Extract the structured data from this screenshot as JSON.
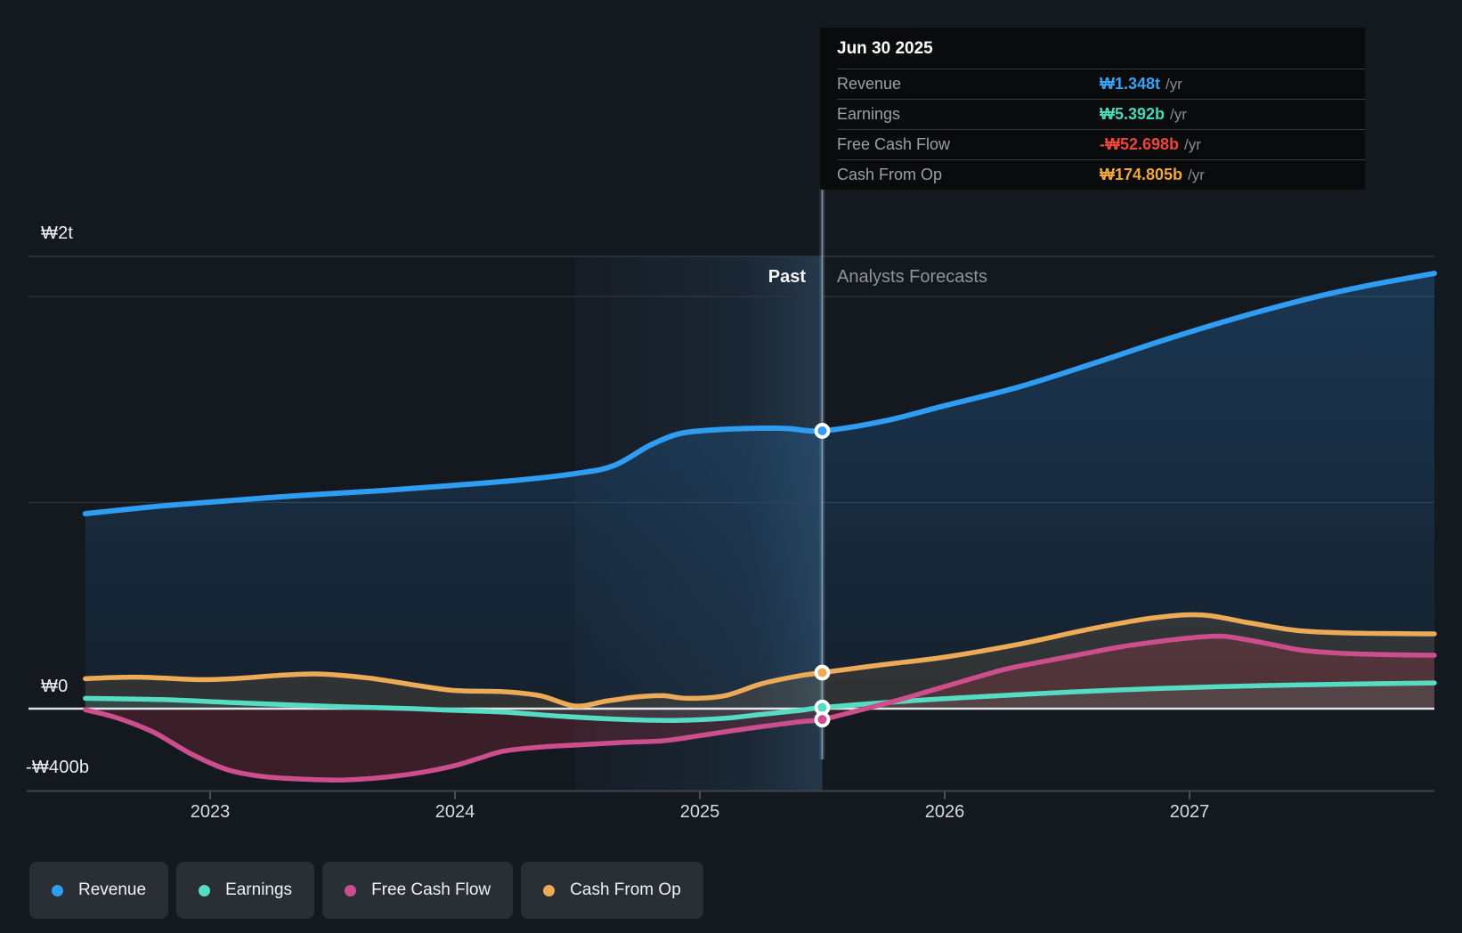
{
  "page": {
    "background": "#14181F"
  },
  "tooltip": {
    "date": "Jun 30 2025",
    "rows": [
      {
        "label": "Revenue",
        "value": "₩1.348t",
        "suffix": "/yr",
        "color": "#35A2F4"
      },
      {
        "label": "Earnings",
        "value": "₩5.392b",
        "suffix": "/yr",
        "color": "#46D8B8"
      },
      {
        "label": "Free Cash Flow",
        "value": "-₩52.698b",
        "suffix": "/yr",
        "color": "#EF453B"
      },
      {
        "label": "Cash From Op",
        "value": "₩174.805b",
        "suffix": "/yr",
        "color": "#F0A63C"
      }
    ]
  },
  "annotations": {
    "past": "Past",
    "forecast": "Analysts Forecasts"
  },
  "legend": [
    {
      "label": "Revenue",
      "color": "#2F9DF2"
    },
    {
      "label": "Earnings",
      "color": "#55DCC2"
    },
    {
      "label": "Free Cash Flow",
      "color": "#CC4E8C"
    },
    {
      "label": "Cash From Op",
      "color": "#EDAB58"
    }
  ],
  "chart_data": {
    "type": "area",
    "title": "Revenue, Earnings and Cash Flow — past and analyst forecasts",
    "x_unit": "calendar year",
    "x_range": [
      2022.49,
      2028.0
    ],
    "x_ticks": [
      2023,
      2024,
      2025,
      2026,
      2027
    ],
    "y_unit": "₩ billions",
    "ylim": [
      -402,
      2272
    ],
    "y_ticks": [
      {
        "label": "₩2t",
        "value": 2000
      },
      {
        "label": "₩0",
        "value": 0
      },
      {
        "label": "-₩400b",
        "value": -400
      }
    ],
    "grid_values": [
      2000,
      1000
    ],
    "divider_x": 2025.5,
    "highlight_band": {
      "from": 2024.49,
      "to": 2025.5
    },
    "marker_date": "Jun 30 2025",
    "series": [
      {
        "name": "Revenue",
        "color": "#2F9DF2",
        "fill": "rgba(44,142,228,0.16)",
        "marker_value": 1348,
        "points": [
          [
            2022.49,
            946
          ],
          [
            2022.75,
            978
          ],
          [
            2023.0,
            1002
          ],
          [
            2023.35,
            1033
          ],
          [
            2023.7,
            1058
          ],
          [
            2024.0,
            1084
          ],
          [
            2024.25,
            1108
          ],
          [
            2024.5,
            1142
          ],
          [
            2024.65,
            1180
          ],
          [
            2024.8,
            1280
          ],
          [
            2024.92,
            1335
          ],
          [
            2025.05,
            1352
          ],
          [
            2025.2,
            1360
          ],
          [
            2025.35,
            1360
          ],
          [
            2025.5,
            1348
          ],
          [
            2025.75,
            1395
          ],
          [
            2026.0,
            1470
          ],
          [
            2026.3,
            1560
          ],
          [
            2026.6,
            1672
          ],
          [
            2026.9,
            1790
          ],
          [
            2027.2,
            1898
          ],
          [
            2027.5,
            1993
          ],
          [
            2027.75,
            2058
          ],
          [
            2028.0,
            2112
          ]
        ]
      },
      {
        "name": "Cash From Op",
        "color": "#EDAB58",
        "fill": "rgba(235,168,85,0.13)",
        "marker_value": 174.805,
        "points": [
          [
            2022.49,
            145
          ],
          [
            2022.7,
            153
          ],
          [
            2022.95,
            141
          ],
          [
            2023.1,
            146
          ],
          [
            2023.3,
            163
          ],
          [
            2023.45,
            168
          ],
          [
            2023.65,
            148
          ],
          [
            2023.85,
            112
          ],
          [
            2024.0,
            88
          ],
          [
            2024.2,
            82
          ],
          [
            2024.35,
            62
          ],
          [
            2024.49,
            13
          ],
          [
            2024.62,
            37
          ],
          [
            2024.75,
            58
          ],
          [
            2024.85,
            63
          ],
          [
            2024.95,
            50
          ],
          [
            2025.1,
            62
          ],
          [
            2025.25,
            120
          ],
          [
            2025.4,
            158
          ],
          [
            2025.5,
            174.805
          ],
          [
            2025.75,
            214
          ],
          [
            2026.0,
            250
          ],
          [
            2026.3,
            312
          ],
          [
            2026.6,
            388
          ],
          [
            2026.85,
            440
          ],
          [
            2027.05,
            455
          ],
          [
            2027.25,
            415
          ],
          [
            2027.45,
            378
          ],
          [
            2027.7,
            366
          ],
          [
            2028.0,
            363
          ]
        ]
      },
      {
        "name": "Earnings",
        "color": "#55DCC2",
        "fill": "rgba(85,215,190,0.13)",
        "marker_value": 5.392,
        "points": [
          [
            2022.49,
            50
          ],
          [
            2022.8,
            44
          ],
          [
            2023.1,
            29
          ],
          [
            2023.5,
            11
          ],
          [
            2023.8,
            1
          ],
          [
            2024.0,
            -8
          ],
          [
            2024.2,
            -17
          ],
          [
            2024.45,
            -38
          ],
          [
            2024.7,
            -53
          ],
          [
            2024.9,
            -57
          ],
          [
            2025.1,
            -47
          ],
          [
            2025.25,
            -28
          ],
          [
            2025.4,
            -10
          ],
          [
            2025.5,
            5.392
          ],
          [
            2025.8,
            33
          ],
          [
            2026.1,
            55
          ],
          [
            2026.5,
            80
          ],
          [
            2026.9,
            99
          ],
          [
            2027.3,
            112
          ],
          [
            2027.7,
            120
          ],
          [
            2028.0,
            125
          ]
        ]
      },
      {
        "name": "Free Cash Flow",
        "color": "#CC4E8C",
        "fill": "rgba(210,62,80,0.20)",
        "marker_value": -52.698,
        "points": [
          [
            2022.49,
            -5
          ],
          [
            2022.62,
            -45
          ],
          [
            2022.77,
            -115
          ],
          [
            2022.92,
            -218
          ],
          [
            2023.07,
            -296
          ],
          [
            2023.22,
            -330
          ],
          [
            2023.4,
            -343
          ],
          [
            2023.55,
            -346
          ],
          [
            2023.72,
            -332
          ],
          [
            2023.87,
            -308
          ],
          [
            2024.0,
            -276
          ],
          [
            2024.1,
            -240
          ],
          [
            2024.2,
            -206
          ],
          [
            2024.35,
            -186
          ],
          [
            2024.5,
            -176
          ],
          [
            2024.7,
            -163
          ],
          [
            2024.85,
            -156
          ],
          [
            2025.0,
            -131
          ],
          [
            2025.15,
            -104
          ],
          [
            2025.3,
            -80
          ],
          [
            2025.42,
            -62
          ],
          [
            2025.5,
            -52.698
          ],
          [
            2025.65,
            -8
          ],
          [
            2025.8,
            38
          ],
          [
            2025.95,
            90
          ],
          [
            2026.1,
            142
          ],
          [
            2026.25,
            192
          ],
          [
            2026.4,
            228
          ],
          [
            2026.55,
            262
          ],
          [
            2026.72,
            300
          ],
          [
            2026.9,
            330
          ],
          [
            2027.05,
            348
          ],
          [
            2027.15,
            350
          ],
          [
            2027.3,
            320
          ],
          [
            2027.45,
            285
          ],
          [
            2027.6,
            270
          ],
          [
            2027.8,
            262
          ],
          [
            2028.0,
            259
          ]
        ]
      }
    ],
    "legend_position": "bottom-left",
    "grid": true
  }
}
